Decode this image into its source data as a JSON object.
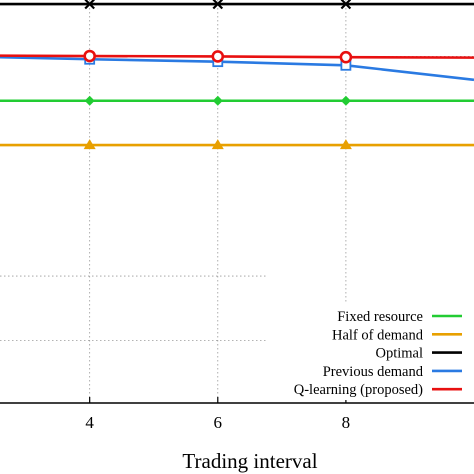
{
  "chart_data": {
    "type": "line",
    "xlabel": "Trading interval",
    "ylabel": "",
    "x_ticks": [
      4,
      6,
      8
    ],
    "xlim": [
      2.6,
      10.0
    ],
    "ylim": [
      0,
      100
    ],
    "grid": true,
    "legend_position": "bottom-right",
    "series": [
      {
        "name": "Fixed resource",
        "color": "#22cc33",
        "marker": "diamond",
        "x": [
          2.6,
          4,
          6,
          8,
          10
        ],
        "y": [
          75,
          75,
          75,
          75,
          75
        ]
      },
      {
        "name": "Half of demand",
        "color": "#e8a000",
        "marker": "triangle",
        "x": [
          2.6,
          4,
          6,
          8,
          10
        ],
        "y": [
          64,
          64,
          64,
          64,
          64
        ]
      },
      {
        "name": "Optimal",
        "color": "#000000",
        "marker": "x",
        "x": [
          2.6,
          4,
          6,
          8,
          10
        ],
        "y": [
          99,
          99,
          99,
          99,
          99
        ]
      },
      {
        "name": "Previous demand",
        "color": "#2a7ae2",
        "marker": "square",
        "x": [
          2.6,
          4,
          6,
          8,
          10
        ],
        "y": [
          85.8,
          85.3,
          84.7,
          83.8,
          80.2
        ]
      },
      {
        "name": "Q-learning (proposed)",
        "color": "#e81010",
        "marker": "circle",
        "x": [
          2.6,
          4,
          6,
          8,
          10
        ],
        "y": [
          86.2,
          86.1,
          86.0,
          85.8,
          85.7
        ]
      }
    ]
  }
}
